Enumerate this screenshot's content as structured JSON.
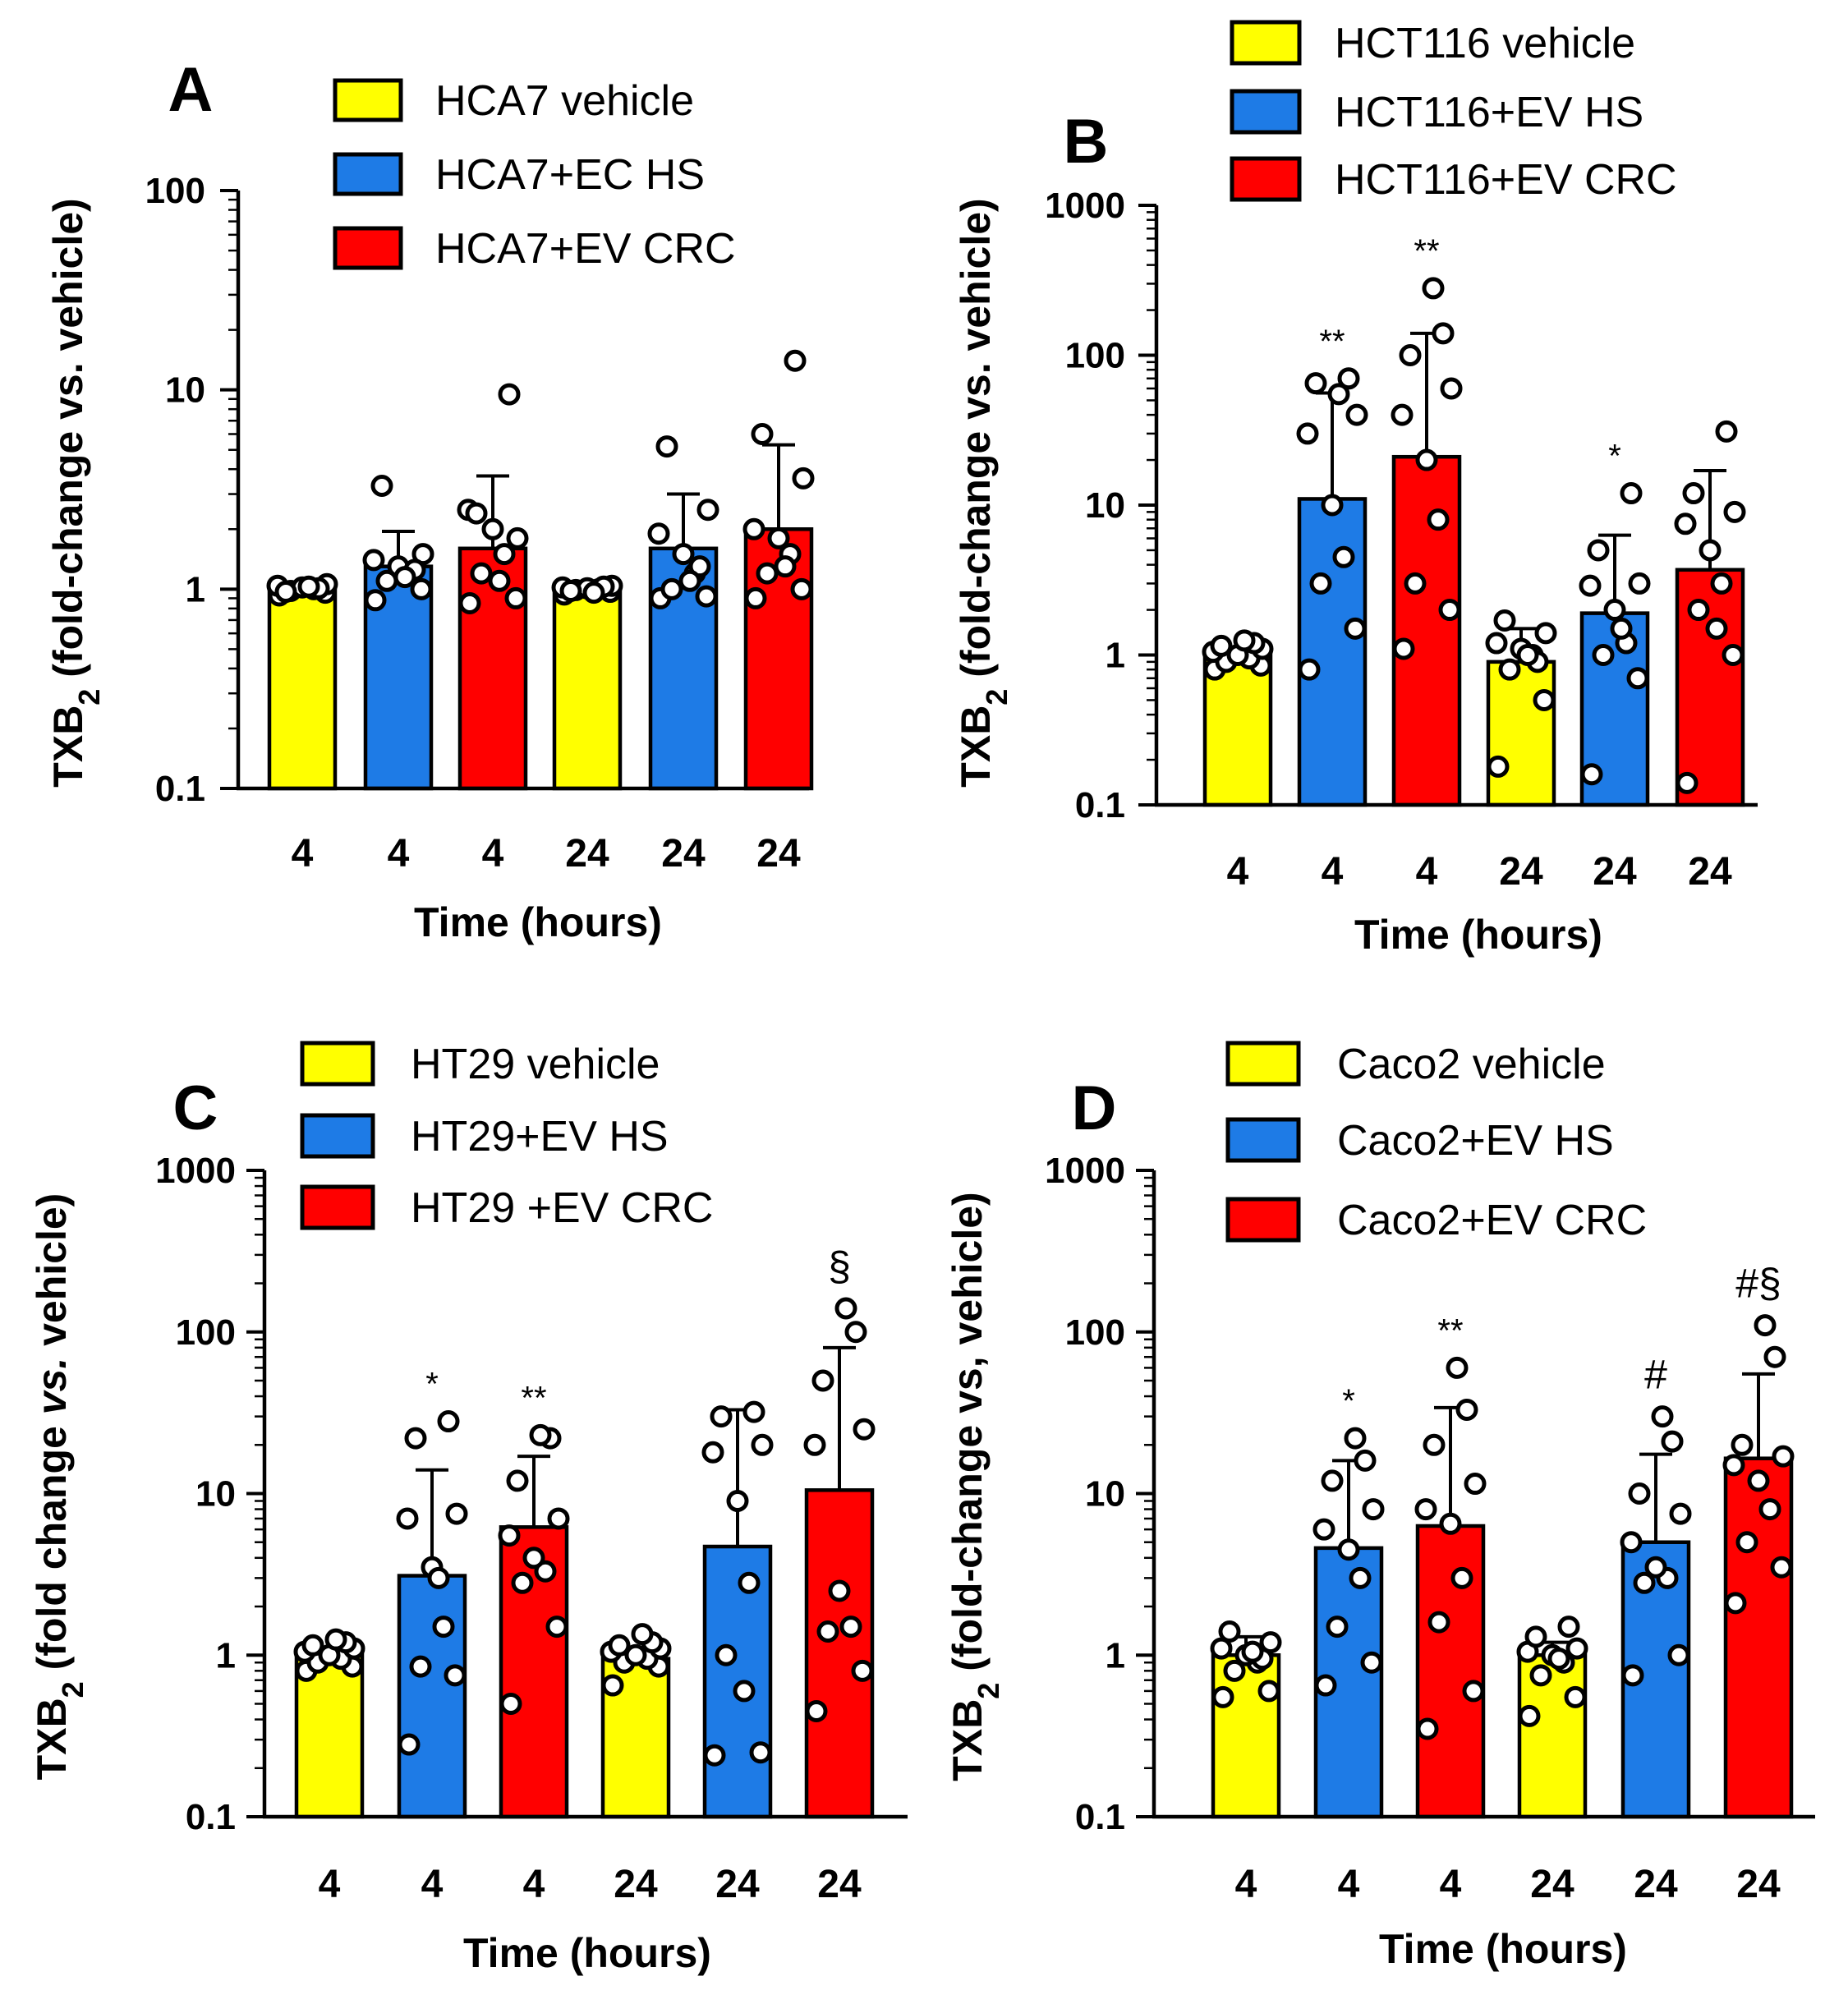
{
  "colors": {
    "vehicle": "#ffff00",
    "hs": "#1e7be6",
    "crc": "#ff0000"
  },
  "chart_data": [
    {
      "type": "bar",
      "panel": "A",
      "xlabel": "Time (hours)",
      "ylabel_main": "TXB",
      "ylabel_sub": "2",
      "ylabel_rest": " (fold-change vs. vehicle)",
      "yscale": "log",
      "ylim": [
        0.1,
        100
      ],
      "ytick_labels": [
        "0.1",
        "1",
        "10",
        "100"
      ],
      "categories": [
        "4",
        "4",
        "4",
        "24",
        "24",
        "24"
      ],
      "legend": [
        "HCA7 vehicle",
        "HCA7+EC HS",
        "HCA7+EV CRC"
      ],
      "bar_groups": [
        "vehicle",
        "hs",
        "crc",
        "vehicle",
        "hs",
        "crc"
      ],
      "values": [
        1.0,
        1.3,
        1.6,
        1.0,
        1.6,
        2.0
      ],
      "error_upper": [
        1.05,
        1.95,
        3.7,
        1.05,
        3.0,
        5.3
      ],
      "significance": [
        "",
        "",
        "",
        "",
        "",
        ""
      ],
      "points": [
        [
          0.93,
          0.96,
          0.98,
          1.0,
          1.02,
          1.04,
          1.06,
          0.97,
          1.01,
          1.03
        ],
        [
          0.88,
          1.0,
          1.1,
          1.2,
          1.3,
          1.4,
          1.5,
          3.3,
          1.25,
          1.15
        ],
        [
          0.85,
          0.9,
          1.2,
          1.5,
          2.0,
          2.5,
          1.8,
          2.4,
          9.5,
          1.1
        ],
        [
          0.94,
          0.97,
          0.99,
          1.0,
          1.01,
          1.02,
          1.04,
          0.98,
          1.03,
          0.96
        ],
        [
          0.9,
          0.92,
          1.0,
          1.2,
          1.5,
          1.9,
          2.5,
          5.2,
          1.3,
          1.1
        ],
        [
          0.9,
          1.0,
          1.2,
          1.5,
          1.8,
          2.0,
          3.6,
          6.0,
          14.0,
          1.3
        ]
      ]
    },
    {
      "type": "bar",
      "panel": "B",
      "xlabel": "Time (hours)",
      "ylabel_main": "TXB",
      "ylabel_sub": "2",
      "ylabel_rest": " (fold-change vs. vehicle)",
      "yscale": "log",
      "ylim": [
        0.1,
        1000
      ],
      "ytick_labels": [
        "0.1",
        "1",
        "10",
        "100",
        "1000"
      ],
      "categories": [
        "4",
        "4",
        "4",
        "24",
        "24",
        "24"
      ],
      "legend": [
        "HCT116 vehicle",
        "HCT116+EV HS",
        "HCT116+EV CRC"
      ],
      "bar_groups": [
        "vehicle",
        "hs",
        "crc",
        "vehicle",
        "hs",
        "crc"
      ],
      "values": [
        1.0,
        11.0,
        21.0,
        0.9,
        1.9,
        3.7
      ],
      "error_upper": [
        1.1,
        56.0,
        140.0,
        1.5,
        6.3,
        17.0
      ],
      "significance": [
        "",
        "**",
        "**",
        "",
        "*",
        ""
      ],
      "points": [
        [
          0.8,
          0.85,
          0.9,
          0.95,
          1.0,
          1.05,
          1.1,
          1.15,
          1.2,
          1.25
        ],
        [
          0.8,
          1.5,
          3.0,
          4.5,
          10.0,
          30.0,
          40.0,
          65.0,
          70.0,
          55.0
        ],
        [
          1.1,
          2.0,
          3.0,
          8.0,
          20.0,
          40.0,
          60.0,
          100.0,
          140.0,
          280.0
        ],
        [
          0.18,
          0.5,
          0.8,
          1.0,
          1.1,
          1.2,
          1.4,
          1.7,
          0.9,
          1.0
        ],
        [
          0.16,
          0.7,
          1.0,
          1.2,
          2.0,
          2.9,
          3.0,
          5.0,
          12.0,
          1.5
        ],
        [
          0.14,
          1.0,
          2.0,
          3.0,
          5.0,
          7.5,
          9.0,
          12.0,
          31.0,
          1.5
        ]
      ]
    },
    {
      "type": "bar",
      "panel": "C",
      "xlabel": "Time (hours)",
      "ylabel_main": "TXB",
      "ylabel_sub": "2",
      "ylabel_pre": " (fold change ",
      "ylabel_italic": "vs.",
      "ylabel_post": " vehicle)",
      "yscale": "log",
      "ylim": [
        0.1,
        1000
      ],
      "ytick_labels": [
        "0.1",
        "1",
        "10",
        "100",
        "1000"
      ],
      "categories": [
        "4",
        "4",
        "4",
        "24",
        "24",
        "24"
      ],
      "legend": [
        "HT29 vehicle",
        "HT29+EV HS",
        "HT29 +EV CRC"
      ],
      "bar_groups": [
        "vehicle",
        "hs",
        "crc",
        "vehicle",
        "hs",
        "crc"
      ],
      "values": [
        1.0,
        3.1,
        6.2,
        0.95,
        4.7,
        10.5
      ],
      "error_upper": [
        1.1,
        14.0,
        17.0,
        1.1,
        33.0,
        80.0
      ],
      "significance": [
        "",
        "*",
        "**",
        "",
        "",
        "§"
      ],
      "points": [
        [
          0.8,
          0.85,
          0.9,
          0.95,
          1.0,
          1.05,
          1.1,
          1.15,
          1.2,
          1.25
        ],
        [
          0.28,
          0.75,
          0.85,
          1.5,
          3.5,
          7.0,
          7.5,
          22.0,
          28.0,
          3.0
        ],
        [
          0.5,
          1.5,
          2.8,
          3.3,
          4.0,
          5.5,
          7.0,
          12.0,
          22.0,
          23.0
        ],
        [
          0.65,
          0.85,
          0.9,
          0.95,
          1.0,
          1.05,
          1.1,
          1.15,
          1.2,
          1.35
        ],
        [
          0.24,
          0.25,
          1.0,
          2.8,
          9.0,
          18.0,
          20.0,
          30.0,
          32.0,
          0.6
        ],
        [
          0.45,
          0.8,
          1.4,
          1.5,
          2.5,
          20.0,
          25.0,
          50.0,
          100.0,
          140.0
        ]
      ]
    },
    {
      "type": "bar",
      "panel": "D",
      "xlabel": "Time (hours)",
      "ylabel_main": "TXB",
      "ylabel_sub": "2",
      "ylabel_rest": " (fold-change vs, vehicle)",
      "yscale": "log",
      "ylim": [
        0.1,
        1000
      ],
      "ytick_labels": [
        "0.1",
        "1",
        "10",
        "100",
        "1000"
      ],
      "categories": [
        "4",
        "4",
        "4",
        "24",
        "24",
        "24"
      ],
      "legend": [
        "Caco2 vehicle",
        "Caco2+EV HS",
        "Caco2+EV CRC"
      ],
      "bar_groups": [
        "vehicle",
        "hs",
        "crc",
        "vehicle",
        "hs",
        "crc"
      ],
      "values": [
        1.0,
        4.6,
        6.3,
        1.0,
        5.0,
        16.5
      ],
      "error_upper": [
        1.3,
        16.0,
        34.0,
        1.2,
        17.5,
        55.0
      ],
      "significance": [
        "",
        "*",
        "**",
        "",
        "#",
        "#§"
      ],
      "points": [
        [
          0.55,
          0.6,
          0.8,
          0.9,
          1.0,
          1.1,
          1.2,
          1.4,
          0.95,
          1.05
        ],
        [
          0.65,
          0.9,
          1.5,
          3.0,
          4.5,
          6.0,
          8.0,
          12.0,
          16.0,
          22.0
        ],
        [
          0.35,
          0.6,
          1.6,
          3.0,
          6.5,
          8.0,
          11.5,
          20.0,
          33.0,
          60.0
        ],
        [
          0.42,
          0.55,
          0.75,
          0.9,
          1.0,
          1.05,
          1.1,
          1.3,
          1.5,
          0.95
        ],
        [
          0.75,
          1.0,
          2.8,
          3.0,
          3.5,
          5.0,
          7.5,
          10.0,
          21.0,
          30.0
        ],
        [
          2.1,
          3.5,
          5.0,
          8.0,
          12.0,
          15.0,
          17.0,
          20.0,
          70.0,
          110.0
        ]
      ]
    }
  ]
}
